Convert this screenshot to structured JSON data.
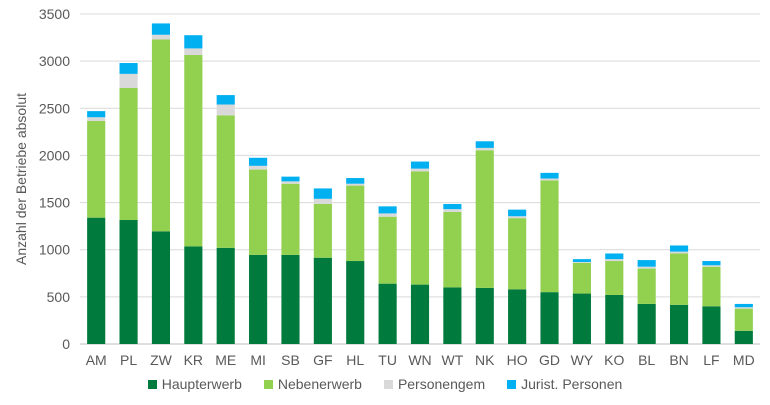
{
  "chart_data": {
    "type": "bar",
    "stacked": true,
    "title": "",
    "xlabel": "",
    "ylabel": "Anzahl der Betriebe absolut",
    "ylim": [
      0,
      3500
    ],
    "yticks": [
      0,
      500,
      1000,
      1500,
      2000,
      2500,
      3000,
      3500
    ],
    "ytick_labels": [
      "0",
      "500",
      "1000",
      "1500",
      "2000",
      "2500",
      "3000",
      "3500"
    ],
    "grid": true,
    "legend_position": "bottom",
    "categories": [
      "AM",
      "PL",
      "ZW",
      "KR",
      "ME",
      "MI",
      "SB",
      "GF",
      "HL",
      "TU",
      "WN",
      "WT",
      "NK",
      "HO",
      "GD",
      "WY",
      "KO",
      "BL",
      "BN",
      "LF",
      "MD"
    ],
    "series": [
      {
        "name": "Haupterwerb",
        "color": "#007a3d",
        "values": [
          1340,
          1315,
          1195,
          1035,
          1020,
          945,
          945,
          915,
          880,
          640,
          630,
          600,
          595,
          580,
          550,
          535,
          520,
          425,
          415,
          400,
          140
        ]
      },
      {
        "name": "Nebenerwerb",
        "color": "#92d050",
        "values": [
          1025,
          1400,
          2035,
          2030,
          1405,
          905,
          755,
          570,
          800,
          710,
          1200,
          800,
          1460,
          755,
          1185,
          325,
          360,
          375,
          545,
          420,
          235
        ]
      },
      {
        "name": "Personengem",
        "color": "#d9d9d9",
        "values": [
          40,
          150,
          50,
          70,
          115,
          40,
          25,
          55,
          20,
          35,
          30,
          30,
          25,
          20,
          20,
          10,
          20,
          20,
          20,
          15,
          15
        ]
      },
      {
        "name": "Jurist. Personen",
        "color": "#00b0f0",
        "values": [
          65,
          115,
          120,
          140,
          100,
          85,
          50,
          110,
          60,
          75,
          75,
          55,
          70,
          70,
          60,
          30,
          60,
          70,
          65,
          45,
          35
        ]
      }
    ]
  }
}
